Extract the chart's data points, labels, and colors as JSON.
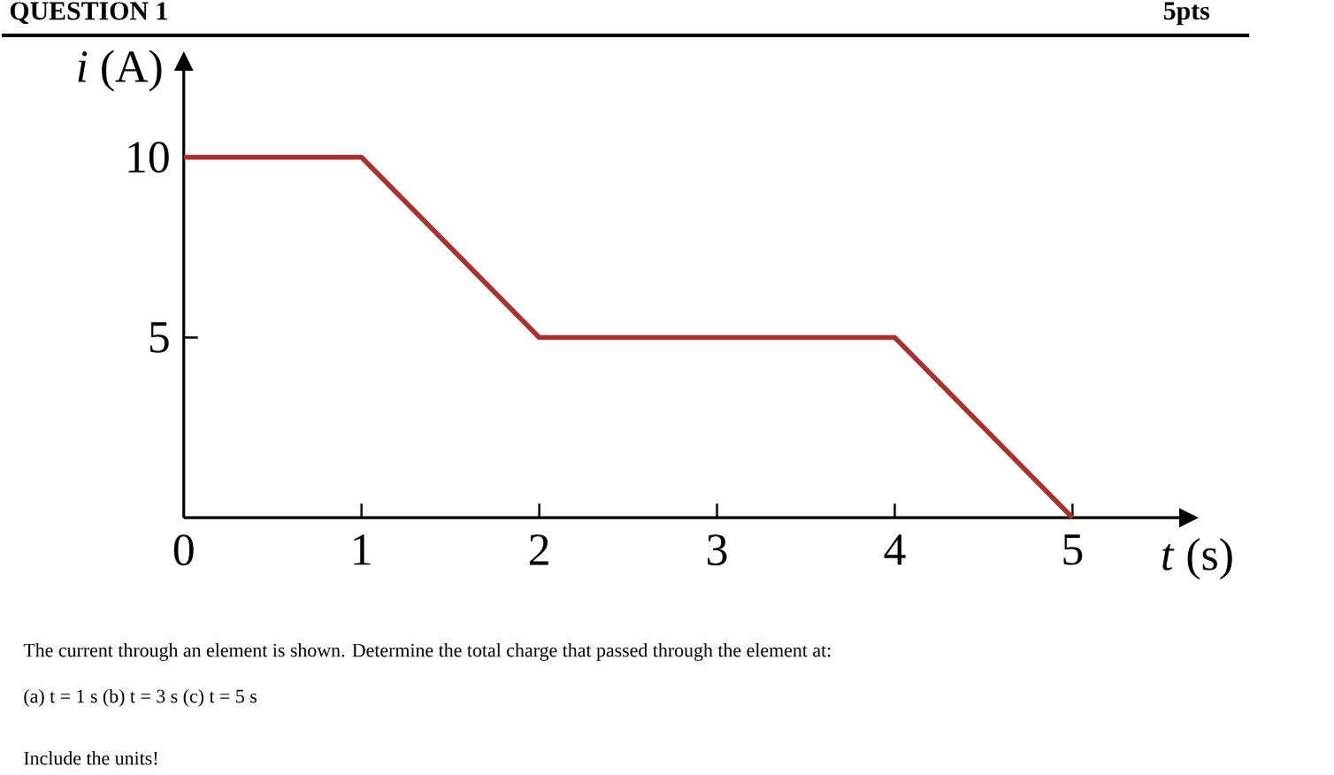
{
  "chart_data": {
    "type": "line",
    "title": "QUESTION 1",
    "xlabel": "*t* (s)",
    "ylabel": "*i* (A)",
    "x": [
      0,
      1,
      2,
      4,
      5
    ],
    "values": [
      10,
      10,
      5,
      5,
      0
    ],
    "color": "#a83232",
    "xlim": [
      0,
      5.6
    ],
    "ylim": [
      0,
      12.4
    ],
    "xticks": [
      0,
      1,
      2,
      3,
      4,
      5
    ],
    "yticks": [
      5,
      10
    ],
    "grid": false,
    "marker": "none",
    "line_style": "solid",
    "annotations": [
      "5pts",
      "The current through an element is shown. Determine the total charge that passed through the element at:",
      "(a) t = 1 s (b) t = 3 s (c) t = 5 s",
      "Include the units!"
    ]
  }
}
